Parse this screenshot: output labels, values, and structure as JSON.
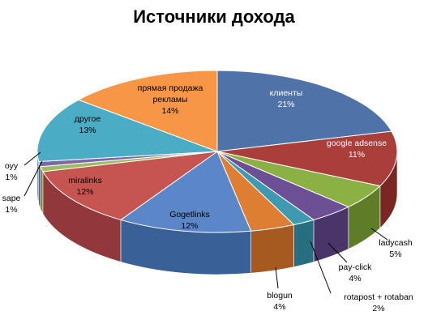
{
  "chart_data": {
    "type": "pie",
    "title": "Источники дохода",
    "slices": [
      {
        "label": "клиенты",
        "pct_label": "21%",
        "value": 21,
        "color": "#4F73A8",
        "dark": "#2E4E7E"
      },
      {
        "label": "google adsense",
        "pct_label": "11%",
        "value": 11,
        "color": "#A93E3A",
        "dark": "#7A2724"
      },
      {
        "label": "ladycash",
        "pct_label": "5%",
        "value": 5,
        "color": "#8BB043",
        "dark": "#5F7D29"
      },
      {
        "label": "pay-click",
        "pct_label": "4%",
        "value": 4,
        "color": "#6C4F94",
        "dark": "#4A3569"
      },
      {
        "label": "rotapost + rotaban",
        "pct_label": "2%",
        "value": 2,
        "color": "#3D9AB0",
        "dark": "#266E80"
      },
      {
        "label": "blogun",
        "pct_label": "4%",
        "value": 4,
        "color": "#DE7E33",
        "dark": "#A65A20"
      },
      {
        "label": "Gogetlinks",
        "pct_label": "12%",
        "value": 12,
        "color": "#5B86C8",
        "dark": "#3A6098"
      },
      {
        "label": "miralinks",
        "pct_label": "12%",
        "value": 12,
        "color": "#C65451",
        "dark": "#93383A"
      },
      {
        "label": "sape",
        "pct_label": "1%",
        "value": 1,
        "color": "#9DBB61",
        "dark": "#6F8A3D"
      },
      {
        "label": "oyy",
        "pct_label": "1%",
        "value": 1,
        "color": "#7F67A6",
        "dark": "#5A4580"
      },
      {
        "label": "другое",
        "pct_label": "13%",
        "value": 13,
        "color": "#4BACC6",
        "dark": "#2E7F96"
      },
      {
        "label": "прямая продажа рекламы",
        "pct_label": "14%",
        "value": 14,
        "color": "#F79646",
        "dark": "#C06E25"
      }
    ]
  }
}
